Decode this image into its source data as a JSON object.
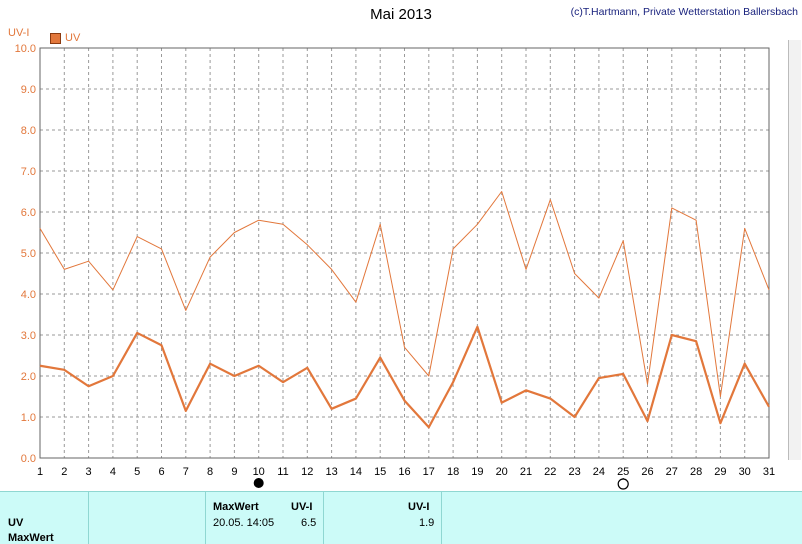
{
  "header": {
    "title": "Mai 2013",
    "copyright": "(c)T.Hartmann, Private Wetterstation Ballersbach",
    "y_unit": "UV-I",
    "legend_label": "UV"
  },
  "colors": {
    "series": "#e2773b",
    "grid": "#9a9a9a",
    "panel": "#ccfbf8"
  },
  "chart_data": {
    "type": "line",
    "x": [
      1,
      2,
      3,
      4,
      5,
      6,
      7,
      8,
      9,
      10,
      11,
      12,
      13,
      14,
      15,
      16,
      17,
      18,
      19,
      20,
      21,
      22,
      23,
      24,
      25,
      26,
      27,
      28,
      29,
      30,
      31
    ],
    "x_tick_labels": [
      "1",
      "2",
      "3",
      "4",
      "5",
      "6",
      "7",
      "8",
      "9",
      "10",
      "11",
      "12",
      "13",
      "14",
      "15",
      "16",
      "17",
      "18",
      "19",
      "20",
      "21",
      "22",
      "23",
      "24",
      "25",
      "26",
      "27",
      "28",
      "29",
      "30",
      "31"
    ],
    "y_tick_labels": [
      "0.0",
      "1.0",
      "2.0",
      "3.0",
      "4.0",
      "5.0",
      "6.0",
      "7.0",
      "8.0",
      "9.0",
      "10.0"
    ],
    "ylim": [
      0,
      10
    ],
    "xlim": [
      1,
      31
    ],
    "grid": true,
    "series": [
      {
        "name": "UV",
        "values": [
          5.6,
          4.6,
          4.8,
          4.1,
          5.4,
          5.1,
          3.6,
          4.9,
          5.5,
          5.8,
          5.7,
          5.2,
          4.6,
          3.8,
          5.7,
          2.7,
          2.0,
          5.1,
          5.7,
          6.5,
          4.6,
          6.3,
          4.5,
          3.9,
          5.3,
          1.8,
          6.1,
          5.8,
          1.5,
          5.6,
          4.1
        ]
      },
      {
        "values": [
          2.25,
          2.15,
          1.75,
          2.0,
          3.05,
          2.75,
          1.15,
          2.3,
          2.0,
          2.25,
          1.85,
          2.2,
          1.2,
          1.45,
          2.45,
          1.4,
          0.75,
          1.85,
          3.2,
          1.35,
          1.65,
          1.45,
          1.0,
          1.95,
          2.05,
          0.9,
          3.0,
          2.85,
          0.85,
          2.3,
          1.25
        ]
      }
    ],
    "moon_phases": [
      {
        "day": 10,
        "phase": "new-moon"
      },
      {
        "day": 25,
        "phase": "full-moon"
      }
    ]
  },
  "panel": {
    "row1_label": "UV",
    "row2_label": "MaxWert",
    "max_header": "MaxWert",
    "unit_header": "UV-I",
    "max_date": "20.05. 14:05",
    "max_value": "6.5",
    "unit_header2": "UV-I",
    "avg_value": "1.9"
  }
}
